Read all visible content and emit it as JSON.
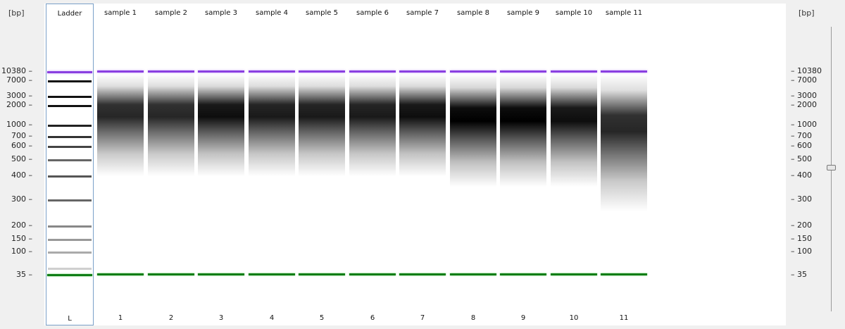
{
  "axis_title": "[bp]",
  "axis_ticks": [
    "10380",
    "7000",
    "3000",
    "2000",
    "1000",
    "700",
    "600",
    "500",
    "400",
    "300",
    "200",
    "150",
    "100",
    "35"
  ],
  "ladder": {
    "label": "Ladder",
    "number": "L"
  },
  "samples": [
    {
      "label": "sample 1",
      "number": "1"
    },
    {
      "label": "sample 2",
      "number": "2"
    },
    {
      "label": "sample 3",
      "number": "3"
    },
    {
      "label": "sample 4",
      "number": "4"
    },
    {
      "label": "sample 5",
      "number": "5"
    },
    {
      "label": "sample 6",
      "number": "6"
    },
    {
      "label": "sample 7",
      "number": "7"
    },
    {
      "label": "sample 8",
      "number": "8"
    },
    {
      "label": "sample 9",
      "number": "9"
    },
    {
      "label": "sample 10",
      "number": "10"
    },
    {
      "label": "sample 11",
      "number": "11"
    }
  ],
  "colors": {
    "upper_marker": "#8a3fe0",
    "lower_marker": "#0f7d16",
    "band": "#000000"
  }
}
